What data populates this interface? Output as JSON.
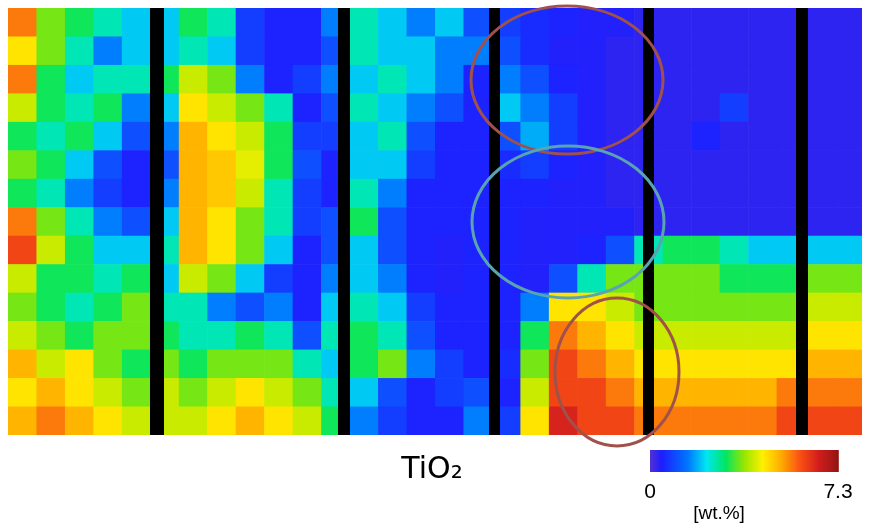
{
  "chart_data": {
    "type": "heatmap",
    "title": "TiO₂",
    "tick_labels": false,
    "values": [
      [
        5.5,
        3.5,
        3.0,
        2.5,
        2.0,
        2.0,
        3.0,
        2.5,
        0.8,
        0.5,
        0.5,
        1.5,
        2.5,
        2.0,
        1.5,
        2.0,
        1.0,
        0.8,
        0.6,
        0.5,
        0.4,
        0.4,
        0.3,
        0.3,
        0.3,
        0.3,
        0.3,
        0.3,
        0.3,
        0.3
      ],
      [
        4.5,
        3.5,
        2.5,
        1.5,
        2.0,
        2.0,
        2.5,
        2.0,
        0.8,
        0.5,
        0.5,
        1.0,
        2.5,
        2.0,
        2.0,
        1.5,
        1.5,
        1.0,
        0.6,
        0.4,
        0.4,
        0.3,
        0.3,
        0.3,
        0.3,
        0.3,
        0.3,
        0.3,
        0.3,
        0.3
      ],
      [
        5.5,
        3.0,
        2.0,
        2.5,
        2.5,
        3.0,
        4.0,
        3.5,
        1.5,
        0.5,
        0.8,
        1.5,
        2.0,
        2.5,
        2.0,
        1.5,
        0.5,
        1.5,
        1.0,
        0.5,
        0.4,
        0.3,
        0.3,
        0.3,
        0.3,
        0.3,
        0.3,
        0.3,
        0.3,
        0.3
      ],
      [
        4.0,
        3.0,
        2.5,
        3.0,
        1.5,
        2.0,
        4.5,
        4.0,
        3.5,
        2.5,
        0.5,
        1.0,
        2.5,
        2.0,
        1.5,
        1.0,
        0.5,
        2.0,
        1.5,
        0.8,
        0.4,
        0.3,
        0.3,
        0.3,
        0.3,
        0.8,
        0.3,
        0.3,
        0.3,
        0.3
      ],
      [
        3.0,
        2.5,
        3.0,
        2.0,
        1.0,
        1.5,
        5.0,
        4.5,
        4.0,
        3.0,
        0.8,
        0.8,
        2.0,
        2.5,
        1.0,
        0.5,
        0.5,
        1.0,
        1.8,
        0.8,
        0.4,
        0.3,
        0.3,
        0.3,
        0.5,
        0.3,
        0.3,
        0.3,
        0.3,
        0.3
      ],
      [
        3.5,
        3.0,
        2.0,
        1.0,
        0.5,
        1.0,
        5.0,
        4.8,
        4.2,
        3.0,
        1.0,
        0.5,
        2.0,
        2.0,
        0.8,
        0.5,
        0.5,
        0.6,
        0.8,
        0.5,
        0.4,
        0.3,
        0.3,
        0.3,
        0.3,
        0.3,
        0.3,
        0.3,
        0.3,
        0.3
      ],
      [
        3.0,
        2.5,
        1.5,
        0.8,
        0.5,
        1.5,
        5.0,
        4.8,
        4.0,
        2.5,
        0.8,
        0.5,
        2.5,
        1.5,
        0.5,
        0.5,
        0.5,
        0.5,
        0.5,
        0.4,
        0.4,
        0.3,
        0.3,
        0.3,
        0.3,
        0.3,
        0.3,
        0.3,
        0.3,
        0.3
      ],
      [
        5.5,
        3.5,
        2.5,
        1.5,
        1.0,
        2.0,
        5.0,
        4.5,
        3.5,
        2.5,
        0.8,
        1.0,
        3.0,
        1.0,
        0.5,
        0.5,
        0.5,
        0.5,
        0.4,
        0.4,
        0.4,
        0.4,
        0.3,
        0.3,
        0.3,
        0.3,
        0.3,
        0.3,
        0.3,
        0.3
      ],
      [
        6.0,
        4.0,
        3.0,
        2.0,
        2.0,
        2.5,
        5.0,
        4.5,
        3.5,
        2.0,
        0.5,
        1.0,
        2.0,
        1.0,
        0.5,
        0.4,
        0.5,
        0.5,
        0.4,
        0.4,
        0.5,
        1.0,
        2.5,
        3.0,
        3.0,
        2.5,
        2.0,
        2.0,
        2.0,
        2.0
      ],
      [
        4.0,
        3.0,
        3.0,
        2.5,
        3.0,
        2.0,
        4.0,
        3.5,
        2.0,
        0.8,
        0.5,
        1.5,
        2.0,
        1.5,
        0.5,
        0.4,
        0.5,
        0.5,
        0.4,
        1.0,
        2.5,
        3.5,
        3.5,
        3.5,
        3.5,
        3.0,
        3.0,
        3.0,
        3.5,
        3.5
      ],
      [
        3.5,
        3.0,
        2.5,
        3.0,
        3.5,
        2.5,
        2.5,
        1.5,
        1.0,
        1.5,
        0.5,
        2.0,
        2.5,
        2.0,
        0.8,
        0.5,
        0.5,
        0.5,
        1.5,
        4.5,
        4.5,
        4.0,
        3.5,
        3.5,
        3.5,
        3.5,
        3.5,
        3.5,
        4.0,
        4.0
      ],
      [
        4.0,
        3.5,
        3.0,
        3.5,
        3.5,
        3.0,
        2.5,
        2.5,
        3.0,
        2.5,
        1.0,
        2.5,
        3.0,
        2.5,
        1.0,
        0.5,
        0.5,
        0.5,
        3.0,
        5.5,
        5.0,
        4.5,
        4.0,
        4.0,
        4.0,
        4.0,
        4.0,
        4.0,
        4.5,
        4.5
      ],
      [
        5.0,
        4.0,
        4.5,
        3.5,
        3.0,
        3.5,
        3.0,
        3.5,
        3.5,
        3.5,
        2.5,
        2.0,
        3.0,
        3.5,
        1.5,
        0.8,
        0.5,
        0.6,
        3.5,
        6.0,
        5.5,
        5.0,
        4.5,
        4.5,
        4.5,
        4.5,
        4.5,
        4.5,
        5.0,
        5.0
      ],
      [
        4.5,
        5.0,
        4.5,
        4.0,
        3.5,
        4.0,
        3.5,
        4.0,
        4.5,
        4.0,
        3.5,
        2.5,
        2.0,
        1.0,
        0.5,
        0.8,
        1.0,
        0.5,
        4.0,
        6.0,
        6.0,
        5.5,
        5.0,
        5.0,
        5.0,
        5.0,
        5.0,
        5.5,
        5.5,
        5.5
      ],
      [
        5.0,
        5.5,
        5.0,
        4.5,
        4.0,
        4.0,
        4.0,
        4.5,
        5.0,
        4.5,
        4.0,
        3.0,
        1.5,
        0.8,
        0.5,
        0.5,
        1.5,
        0.8,
        4.5,
        6.5,
        6.0,
        6.0,
        5.5,
        5.5,
        5.5,
        5.5,
        5.5,
        6.0,
        6.0,
        6.0
      ]
    ],
    "colorbar": {
      "range": [
        0,
        7.3
      ],
      "ticks": [
        0,
        7.3
      ],
      "label": "[wt.%]"
    }
  }
}
